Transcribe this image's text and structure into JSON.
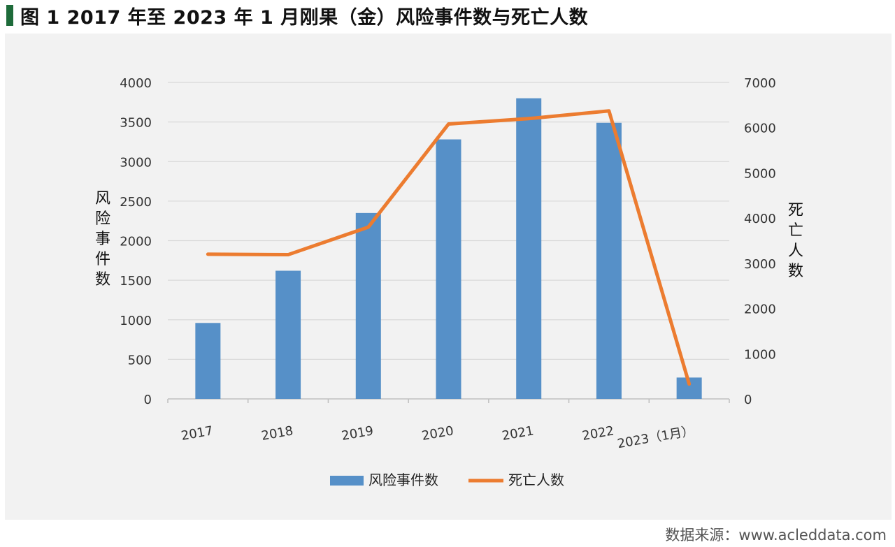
{
  "title": "图 1  2017 年至 2023 年 1 月刚果（金）风险事件数与死亡人数",
  "source": "数据来源：www.acleddata.com",
  "colors": {
    "title_mark": "#1e6b3a",
    "bars": "#5690c8",
    "line": "#ec7c30",
    "panel": "#f2f2f2",
    "grid": "#d9d9d9"
  },
  "chart_data": {
    "type": "bar",
    "categories": [
      "2017",
      "2018",
      "2019",
      "2020",
      "2021",
      "2022",
      "2023（1月）"
    ],
    "series": [
      {
        "name": "风险事件数",
        "type": "bar",
        "axis": "left",
        "values": [
          960,
          1620,
          2350,
          3280,
          3800,
          3490,
          270
        ]
      },
      {
        "name": "死亡人数",
        "type": "line",
        "axis": "right",
        "values": [
          3200,
          3190,
          3800,
          6080,
          6200,
          6370,
          330
        ]
      }
    ],
    "y_left": {
      "label": "风险事件数",
      "ylim": [
        0,
        4000
      ],
      "ticks": [
        0,
        500,
        1000,
        1500,
        2000,
        2500,
        3000,
        3500,
        4000
      ]
    },
    "y_right": {
      "label": "死亡人数",
      "ylim": [
        0,
        7000
      ],
      "ticks": [
        0,
        1000,
        2000,
        3000,
        4000,
        5000,
        6000,
        7000
      ]
    },
    "grid": true,
    "legend": "bottom"
  }
}
